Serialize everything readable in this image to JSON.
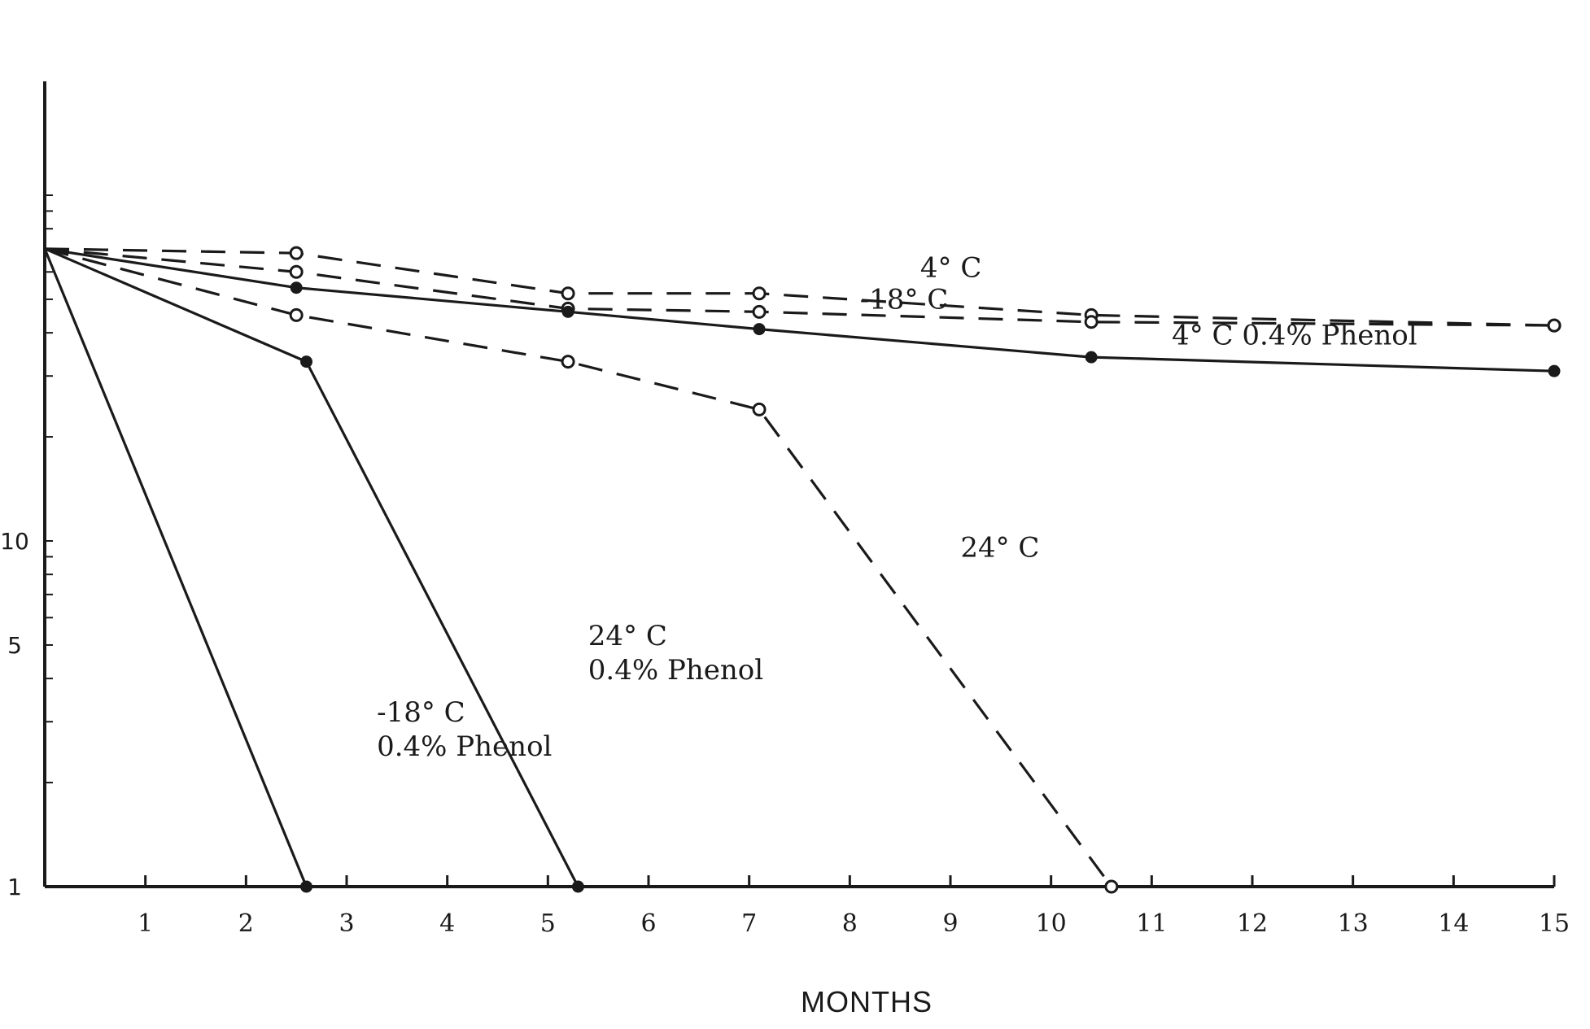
{
  "chart_data": {
    "type": "line",
    "title": "",
    "xlabel": "MONTHS",
    "ylabel": "",
    "xlim": [
      0,
      15
    ],
    "x_ticks": [
      1,
      2,
      3,
      4,
      5,
      6,
      7,
      8,
      9,
      10,
      11,
      12,
      13,
      14,
      15
    ],
    "y_scale": "log",
    "ylim": [
      1,
      100
    ],
    "y_tick_labels": [
      "1",
      "5",
      "10"
    ],
    "grid": false,
    "legend": "none",
    "ink_color": "#1a1a1a",
    "series": [
      {
        "name": "4° C",
        "style": "dashed",
        "marker": "open-circle",
        "x": [
          0,
          2.5,
          5.2,
          7.1,
          10.4,
          15
        ],
        "y": [
          70,
          68,
          52,
          52,
          45,
          42
        ]
      },
      {
        "name": "-18° C",
        "style": "dashed",
        "marker": "open-circle",
        "x": [
          0,
          2.5,
          5.2,
          7.1,
          10.4,
          15
        ],
        "y": [
          70,
          60,
          47,
          46,
          43,
          42
        ]
      },
      {
        "name": "4° C  0.4% Phenol",
        "style": "solid",
        "marker": "filled-circle",
        "x": [
          0,
          2.5,
          5.2,
          7.1,
          10.4,
          15
        ],
        "y": [
          70,
          54,
          46,
          41,
          34,
          31
        ]
      },
      {
        "name": "24° C",
        "style": "dashed",
        "marker": "open-circle",
        "x": [
          0,
          2.5,
          5.2,
          7.1,
          10.6
        ],
        "y": [
          70,
          45,
          33,
          24,
          1
        ]
      },
      {
        "name": "24° C\n0.4% Phenol",
        "style": "solid",
        "marker": "filled-circle",
        "x": [
          0,
          2.6,
          5.3
        ],
        "y": [
          70,
          33,
          1
        ]
      },
      {
        "name": "-18° C\n0.4% Phenol",
        "style": "solid",
        "marker": "filled-circle",
        "x": [
          0,
          2.6
        ],
        "y": [
          70,
          1
        ]
      }
    ],
    "annotations": [
      {
        "text": "4° C",
        "x": 8.7,
        "y": 58
      },
      {
        "text": "-18° C",
        "x": 8.1,
        "y": 47
      },
      {
        "text": "4° C  0.4% Phenol",
        "x": 11.2,
        "y": 37
      },
      {
        "text": "24° C",
        "x": 9.1,
        "y": 9
      },
      {
        "text": "24° C\n0.4% Phenol",
        "x": 5.4,
        "y": 5
      },
      {
        "text": "-18° C\n0.4% Phenol",
        "x": 3.3,
        "y": 3
      }
    ]
  }
}
